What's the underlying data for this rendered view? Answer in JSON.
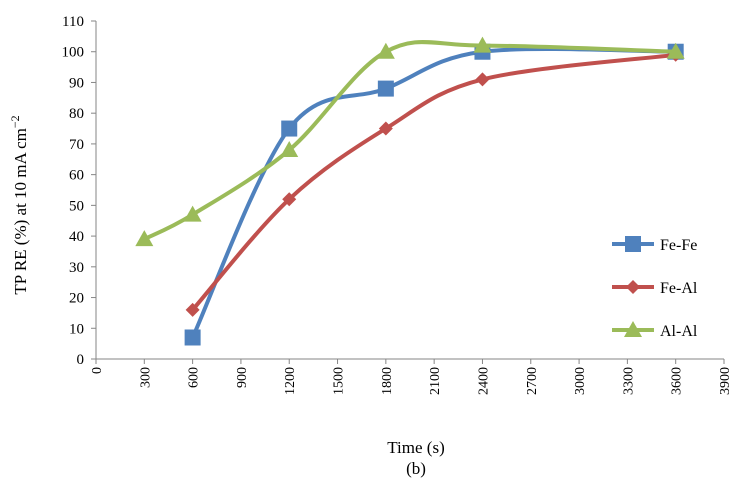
{
  "chart_data": {
    "type": "line",
    "xlabel": "Time (s)",
    "ylabel": "TP RE (%) at 10 mA cm",
    "ylabel_sup": "−2",
    "caption": "(b)",
    "xlim": [
      0,
      3900
    ],
    "ylim": [
      0,
      110
    ],
    "x_ticks": [
      "0",
      "300",
      "600",
      "900",
      "1200",
      "1500",
      "1800",
      "2100",
      "2400",
      "2700",
      "3000",
      "3300",
      "3600",
      "3900"
    ],
    "y_ticks": [
      "0",
      "10",
      "20",
      "30",
      "40",
      "50",
      "60",
      "70",
      "80",
      "90",
      "100",
      "110"
    ],
    "grid": false,
    "legend_position": "right",
    "series": [
      {
        "name": "Fe-Fe",
        "color": "#4F81BD",
        "marker": "square",
        "x": [
          600,
          1200,
          1800,
          2400,
          3600
        ],
        "y": [
          7,
          75,
          88,
          100,
          100
        ]
      },
      {
        "name": "Fe-Al",
        "color": "#C0504D",
        "marker": "diamond",
        "x": [
          600,
          1200,
          1800,
          2400,
          3600
        ],
        "y": [
          16,
          52,
          75,
          91,
          99
        ]
      },
      {
        "name": "Al-Al",
        "color": "#9BBB59",
        "marker": "triangle",
        "x": [
          300,
          600,
          1200,
          1800,
          2400,
          3600
        ],
        "y": [
          39,
          47,
          68,
          100,
          102,
          100
        ]
      }
    ]
  }
}
